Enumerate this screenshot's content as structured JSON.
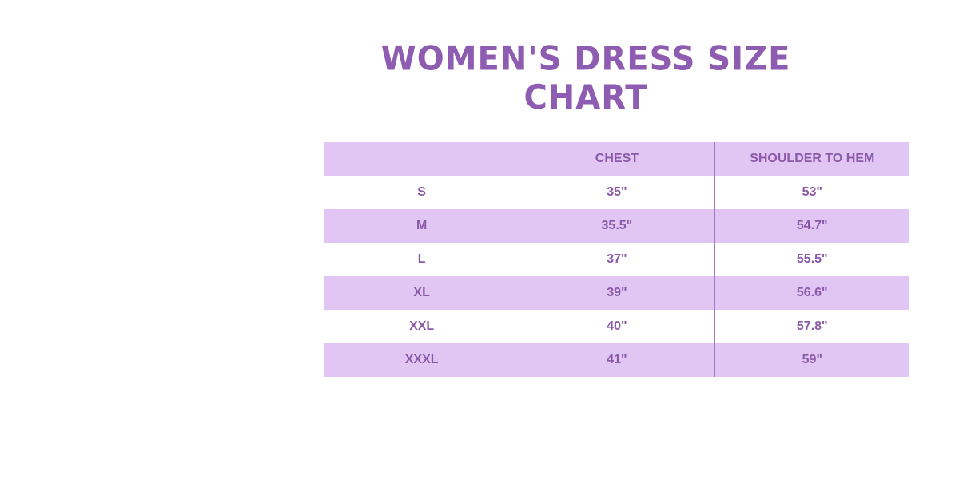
{
  "title": "WOMEN'S DRESS SIZE CHART",
  "colors": {
    "accent": "#8e5cb0",
    "row_fill": "#e1c6f4",
    "text": "#8a5aa8"
  },
  "table": {
    "headers": [
      "",
      "CHEST",
      "SHOULDER TO HEM"
    ],
    "rows": [
      [
        "S",
        "35\"",
        "53\""
      ],
      [
        "M",
        "35.5\"",
        "54.7\""
      ],
      [
        "L",
        "37\"",
        "55.5\""
      ],
      [
        "XL",
        "39\"",
        "56.6\""
      ],
      [
        "XXL",
        "40\"",
        "57.8\""
      ],
      [
        "XXXL",
        "41\"",
        "59\""
      ]
    ]
  }
}
